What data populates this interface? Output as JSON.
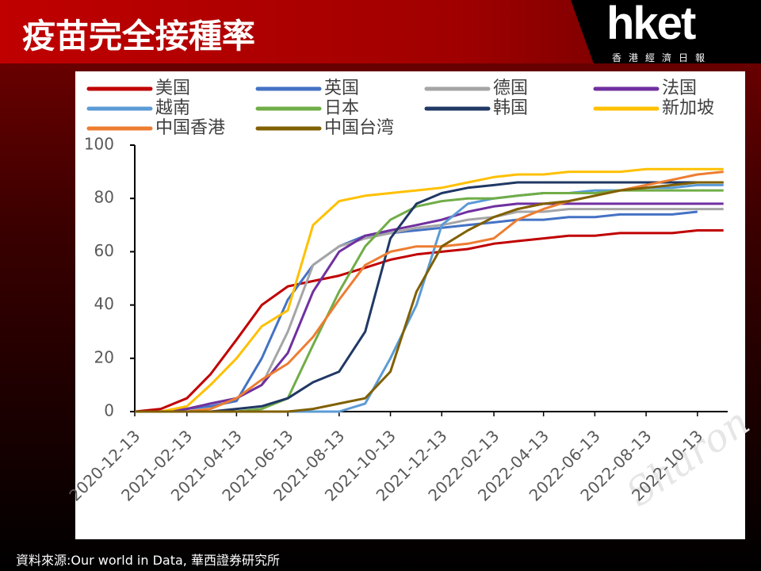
{
  "header": {
    "title": "疫苗完全接種率",
    "logo": "hket",
    "logo_subtitle": "香港經濟日報"
  },
  "footer": {
    "source": "資料來源:Our world in Data, 華西證券研究所"
  },
  "chart_data": {
    "type": "line",
    "watermark": "Sharon",
    "x": [
      "2020-12-13",
      "2021-01-13",
      "2021-02-13",
      "2021-03-13",
      "2021-04-13",
      "2021-05-13",
      "2021-06-13",
      "2021-07-13",
      "2021-08-13",
      "2021-09-13",
      "2021-10-13",
      "2021-11-13",
      "2021-12-13",
      "2022-01-13",
      "2022-02-13",
      "2022-03-13",
      "2022-04-13",
      "2022-05-13",
      "2022-06-13",
      "2022-07-13",
      "2022-08-13",
      "2022-09-13",
      "2022-10-13",
      "2022-11-13"
    ],
    "xlim": [
      "2020-12-13",
      "2022-11-18"
    ],
    "xticks": [
      "2020-12-13",
      "2021-02-13",
      "2021-04-13",
      "2021-06-13",
      "2021-08-13",
      "2021-10-13",
      "2021-12-13",
      "2022-02-13",
      "2022-04-13",
      "2022-06-13",
      "2022-08-13",
      "2022-10-13"
    ],
    "ylim": [
      0,
      100
    ],
    "yticks": [
      0,
      20,
      40,
      60,
      80,
      100
    ],
    "series": [
      {
        "name": "美国",
        "color": "#c00000",
        "values": [
          0,
          1,
          5,
          14,
          27,
          40,
          47,
          49,
          51,
          54,
          57,
          59,
          60,
          61,
          63,
          64,
          65,
          66,
          66,
          67,
          67,
          67,
          68,
          68
        ]
      },
      {
        "name": "英国",
        "color": "#4472c4",
        "values": [
          0,
          0,
          1,
          2,
          4,
          20,
          42,
          55,
          62,
          66,
          67,
          68,
          69,
          70,
          71,
          72,
          72,
          73,
          73,
          74,
          74,
          74,
          75,
          null
        ]
      },
      {
        "name": "德国",
        "color": "#a5a5a5",
        "values": [
          0,
          0,
          1,
          3,
          5,
          10,
          30,
          55,
          62,
          65,
          67,
          69,
          70,
          72,
          73,
          75,
          75,
          76,
          76,
          76,
          76,
          76,
          76,
          76
        ]
      },
      {
        "name": "法国",
        "color": "#7030a0",
        "values": [
          0,
          0,
          1,
          3,
          5,
          10,
          22,
          45,
          60,
          66,
          68,
          70,
          72,
          75,
          77,
          78,
          78,
          78,
          78,
          78,
          78,
          78,
          78,
          78
        ]
      },
      {
        "name": "越南",
        "color": "#5b9bd5",
        "values": [
          0,
          0,
          0,
          0,
          0,
          0,
          0,
          0,
          0,
          3,
          20,
          40,
          70,
          78,
          80,
          81,
          82,
          82,
          83,
          83,
          84,
          84,
          85,
          85
        ]
      },
      {
        "name": "日本",
        "color": "#70ad47",
        "values": [
          0,
          0,
          0,
          0,
          0,
          1,
          5,
          25,
          45,
          62,
          72,
          77,
          79,
          80,
          80,
          81,
          82,
          82,
          82,
          83,
          83,
          83,
          83,
          83
        ]
      },
      {
        "name": "韩国",
        "color": "#203864",
        "values": [
          0,
          0,
          0,
          0,
          1,
          2,
          5,
          11,
          15,
          30,
          65,
          78,
          82,
          84,
          85,
          86,
          86,
          86,
          86,
          86,
          86,
          86,
          86,
          86
        ]
      },
      {
        "name": "新加坡",
        "color": "#ffc000",
        "values": [
          0,
          0,
          2,
          10,
          20,
          32,
          38,
          70,
          79,
          81,
          82,
          83,
          84,
          86,
          88,
          89,
          89,
          90,
          90,
          90,
          91,
          91,
          91,
          91
        ]
      },
      {
        "name": "中国香港",
        "color": "#ed7d31",
        "values": [
          0,
          0,
          0,
          1,
          5,
          12,
          18,
          28,
          42,
          55,
          60,
          62,
          62,
          63,
          65,
          72,
          76,
          79,
          81,
          83,
          85,
          87,
          89,
          90
        ]
      },
      {
        "name": "中国台湾",
        "color": "#806000",
        "values": [
          0,
          0,
          0,
          0,
          0,
          0,
          0,
          1,
          3,
          5,
          15,
          45,
          62,
          68,
          73,
          76,
          78,
          79,
          81,
          83,
          84,
          85,
          86,
          86
        ]
      }
    ]
  }
}
